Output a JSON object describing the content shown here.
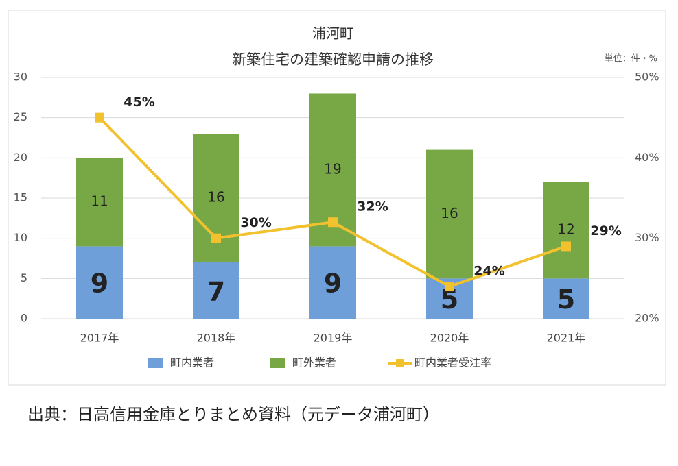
{
  "chart_data": {
    "type": "bar",
    "stacked": true,
    "title": "浦河町",
    "subtitle": "新築住宅の建築確認申請の推移",
    "unit_note": "単位：件・%",
    "source": "出典：日高信用金庫とりまとめ資料（元データ浦河町）",
    "categories": [
      "2017年",
      "2018年",
      "2019年",
      "2020年",
      "2021年"
    ],
    "series": [
      {
        "name": "町内業者",
        "color": "#6f9fd8",
        "values": [
          9,
          7,
          9,
          5,
          5
        ]
      },
      {
        "name": "町外業者",
        "color": "#78a845",
        "values": [
          11,
          16,
          19,
          16,
          12
        ]
      },
      {
        "name": "町内業者受注率",
        "color": "#f2c12e",
        "type": "line",
        "axis": "y2",
        "values": [
          45,
          30,
          32,
          24,
          29
        ],
        "value_labels": [
          "45%",
          "30%",
          "32%",
          "24%",
          "29%"
        ]
      }
    ],
    "ylim": [
      0,
      30
    ],
    "yticks": [
      0,
      5,
      10,
      15,
      20,
      25,
      30
    ],
    "y2lim": [
      20,
      50
    ],
    "y2ticks": [
      {
        "value": 20,
        "label": "20%"
      },
      {
        "value": 30,
        "label": "30%"
      },
      {
        "value": 40,
        "label": "40%"
      },
      {
        "value": 50,
        "label": "50%"
      }
    ],
    "grid": true,
    "legend": "bottom"
  }
}
